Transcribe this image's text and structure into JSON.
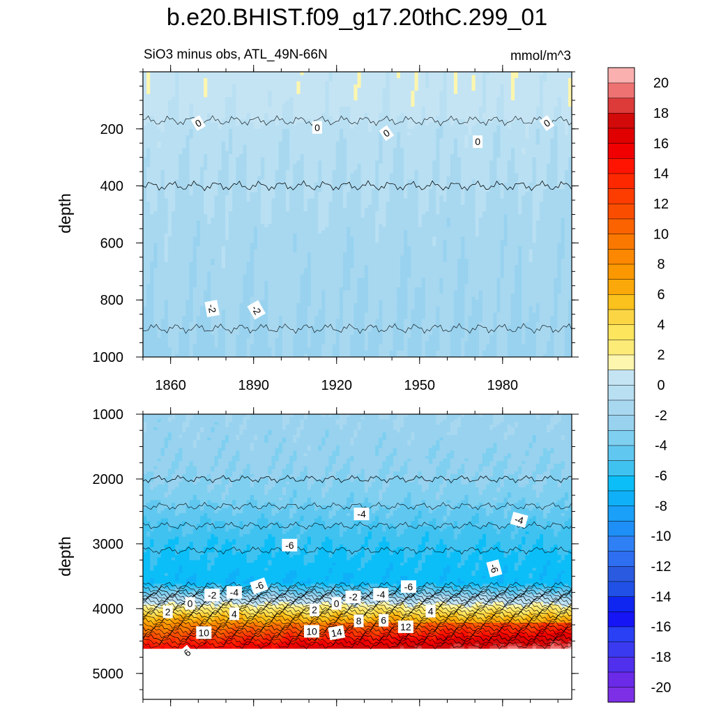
{
  "chart_data": {
    "type": "contour",
    "title": "b.e20.BHIST.f09_g17.20thC.299_01",
    "subtitle_left": "SiO3 minus obs, ATL_49N-66N",
    "units": "mmol/m^3",
    "x": {
      "label": "",
      "range": [
        1850,
        2005
      ],
      "ticks": [
        1860,
        1890,
        1920,
        1950,
        1980
      ],
      "tick_labels": [
        "1860",
        "1890",
        "1920",
        "1950",
        "1980"
      ]
    },
    "panels": [
      {
        "name": "upper",
        "ylabel": "depth",
        "ylim": [
          0,
          1000
        ],
        "y_ticks": [
          200,
          400,
          600,
          800,
          1000
        ],
        "y_tick_labels": [
          "200",
          "400",
          "600",
          "800",
          "1000"
        ],
        "mean_profile": [
          [
            0,
            0.5
          ],
          [
            60,
            0.5
          ],
          [
            160,
            0.2
          ],
          [
            200,
            -0.5
          ],
          [
            400,
            -1.0
          ],
          [
            560,
            -1.5
          ],
          [
            800,
            -1.8
          ],
          [
            1000,
            -2.2
          ]
        ],
        "contour_labels": [
          {
            "text": "0",
            "year": 1870,
            "depth": 180,
            "rot": -30
          },
          {
            "text": "0",
            "year": 1913,
            "depth": 195,
            "rot": 0
          },
          {
            "text": "0",
            "year": 1938,
            "depth": 215,
            "rot": -35
          },
          {
            "text": "0",
            "year": 1971,
            "depth": 245,
            "rot": 0
          },
          {
            "text": "0",
            "year": 1996,
            "depth": 180,
            "rot": -35
          },
          {
            "text": "-2",
            "year": 1875,
            "depth": 830,
            "rot": 80
          },
          {
            "text": "-2",
            "year": 1891,
            "depth": 835,
            "rot": 60
          }
        ]
      },
      {
        "name": "lower",
        "ylabel": "depth",
        "ylim": [
          1000,
          5400
        ],
        "y_ticks": [
          1000,
          2000,
          3000,
          4000,
          5000
        ],
        "y_tick_labels": [
          "1000",
          "2000",
          "3000",
          "4000",
          "5000"
        ],
        "data_bottom": 4620,
        "mean_profile": [
          [
            1000,
            -2.2
          ],
          [
            1500,
            -2.6
          ],
          [
            2000,
            -3.0
          ],
          [
            2300,
            -3.6
          ],
          [
            2600,
            -4.6
          ],
          [
            2900,
            -5.6
          ],
          [
            3300,
            -6.4
          ],
          [
            3600,
            -6.8
          ],
          [
            3750,
            -4.0
          ],
          [
            3850,
            -1.0
          ],
          [
            3950,
            1.5
          ],
          [
            4100,
            5.0
          ],
          [
            4300,
            9.0
          ],
          [
            4450,
            12.0
          ],
          [
            4620,
            15.0
          ]
        ],
        "contour_labels": [
          {
            "text": "-4",
            "year": 1929,
            "depth": 2540,
            "rot": 0
          },
          {
            "text": "-4",
            "year": 1986,
            "depth": 2630,
            "rot": 15
          },
          {
            "text": "-6",
            "year": 1903,
            "depth": 3020,
            "rot": 0
          },
          {
            "text": "-6",
            "year": 1977,
            "depth": 3380,
            "rot": 75
          },
          {
            "text": "-6",
            "year": 1892,
            "depth": 3650,
            "rot": -20
          },
          {
            "text": "-6",
            "year": 1946,
            "depth": 3660,
            "rot": 0
          },
          {
            "text": "-4",
            "year": 1883,
            "depth": 3750,
            "rot": 0
          },
          {
            "text": "-4",
            "year": 1936,
            "depth": 3780,
            "rot": 0
          },
          {
            "text": "-2",
            "year": 1875,
            "depth": 3790,
            "rot": 0
          },
          {
            "text": "-2",
            "year": 1926,
            "depth": 3820,
            "rot": 0
          },
          {
            "text": "0",
            "year": 1867,
            "depth": 3920,
            "rot": 0
          },
          {
            "text": "0",
            "year": 1920,
            "depth": 3920,
            "rot": 0
          },
          {
            "text": "2",
            "year": 1859,
            "depth": 4050,
            "rot": 0
          },
          {
            "text": "2",
            "year": 1912,
            "depth": 4020,
            "rot": 0
          },
          {
            "text": "4",
            "year": 1883,
            "depth": 4080,
            "rot": 0
          },
          {
            "text": "4",
            "year": 1954,
            "depth": 4040,
            "rot": 0
          },
          {
            "text": "6",
            "year": 1866,
            "depth": 4680,
            "rot": -40
          },
          {
            "text": "6",
            "year": 1937,
            "depth": 4180,
            "rot": 0
          },
          {
            "text": "8",
            "year": 1928,
            "depth": 4190,
            "rot": 0
          },
          {
            "text": "10",
            "year": 1872,
            "depth": 4370,
            "rot": 0
          },
          {
            "text": "10",
            "year": 1911,
            "depth": 4350,
            "rot": 0
          },
          {
            "text": "12",
            "year": 1945,
            "depth": 4280,
            "rot": 0
          },
          {
            "text": "14",
            "year": 1920,
            "depth": 4370,
            "rot": -10
          }
        ]
      }
    ],
    "colorbar": {
      "levels": [
        -21,
        -20,
        -19,
        -18,
        -17,
        -16,
        -15,
        -14,
        -13,
        -12,
        -11,
        -10,
        -9,
        -8,
        -7,
        -6,
        -5,
        -4,
        -3,
        -2,
        -1,
        0,
        1,
        2,
        3,
        4,
        5,
        6,
        7,
        8,
        9,
        10,
        11,
        12,
        13,
        14,
        15,
        16,
        17,
        18,
        19,
        20,
        21
      ],
      "tick_values": [
        -20,
        -18,
        -16,
        -14,
        -12,
        -10,
        -8,
        -6,
        -4,
        -2,
        0,
        2,
        4,
        6,
        8,
        10,
        12,
        14,
        16,
        18,
        20
      ],
      "tick_labels": [
        "-20",
        "-18",
        "-16",
        "-14",
        "-12",
        "-10",
        "-8",
        "-6",
        "-4",
        "-2",
        "0",
        "2",
        "4",
        "6",
        "8",
        "10",
        "12",
        "14",
        "16",
        "18",
        "20"
      ],
      "colors": [
        "#7d2fe6",
        "#6a2ae8",
        "#5030ec",
        "#3a3af0",
        "#2a40f4",
        "#1515f5",
        "#0f25f0",
        "#2050e6",
        "#2a5ae0",
        "#2e6ef0",
        "#2f80f5",
        "#1e8ff7",
        "#1aa0f8",
        "#0fb0f8",
        "#0cbef8",
        "#40c2f0",
        "#60c8f0",
        "#7ecff0",
        "#98d2ef",
        "#a8d8f0",
        "#b8dff2",
        "#c4e4f4",
        "#fdf6ae",
        "#fdeb78",
        "#fde55e",
        "#fcd545",
        "#fbc11c",
        "#fba90a",
        "#fb9800",
        "#fb8800",
        "#fb7800",
        "#fb6300",
        "#fb4d00",
        "#fd3c00",
        "#fd2800",
        "#fe1400",
        "#f00000",
        "#e00000",
        "#d20a0a",
        "#dd3a3a",
        "#ee7272",
        "#fbb0b0"
      ]
    }
  }
}
